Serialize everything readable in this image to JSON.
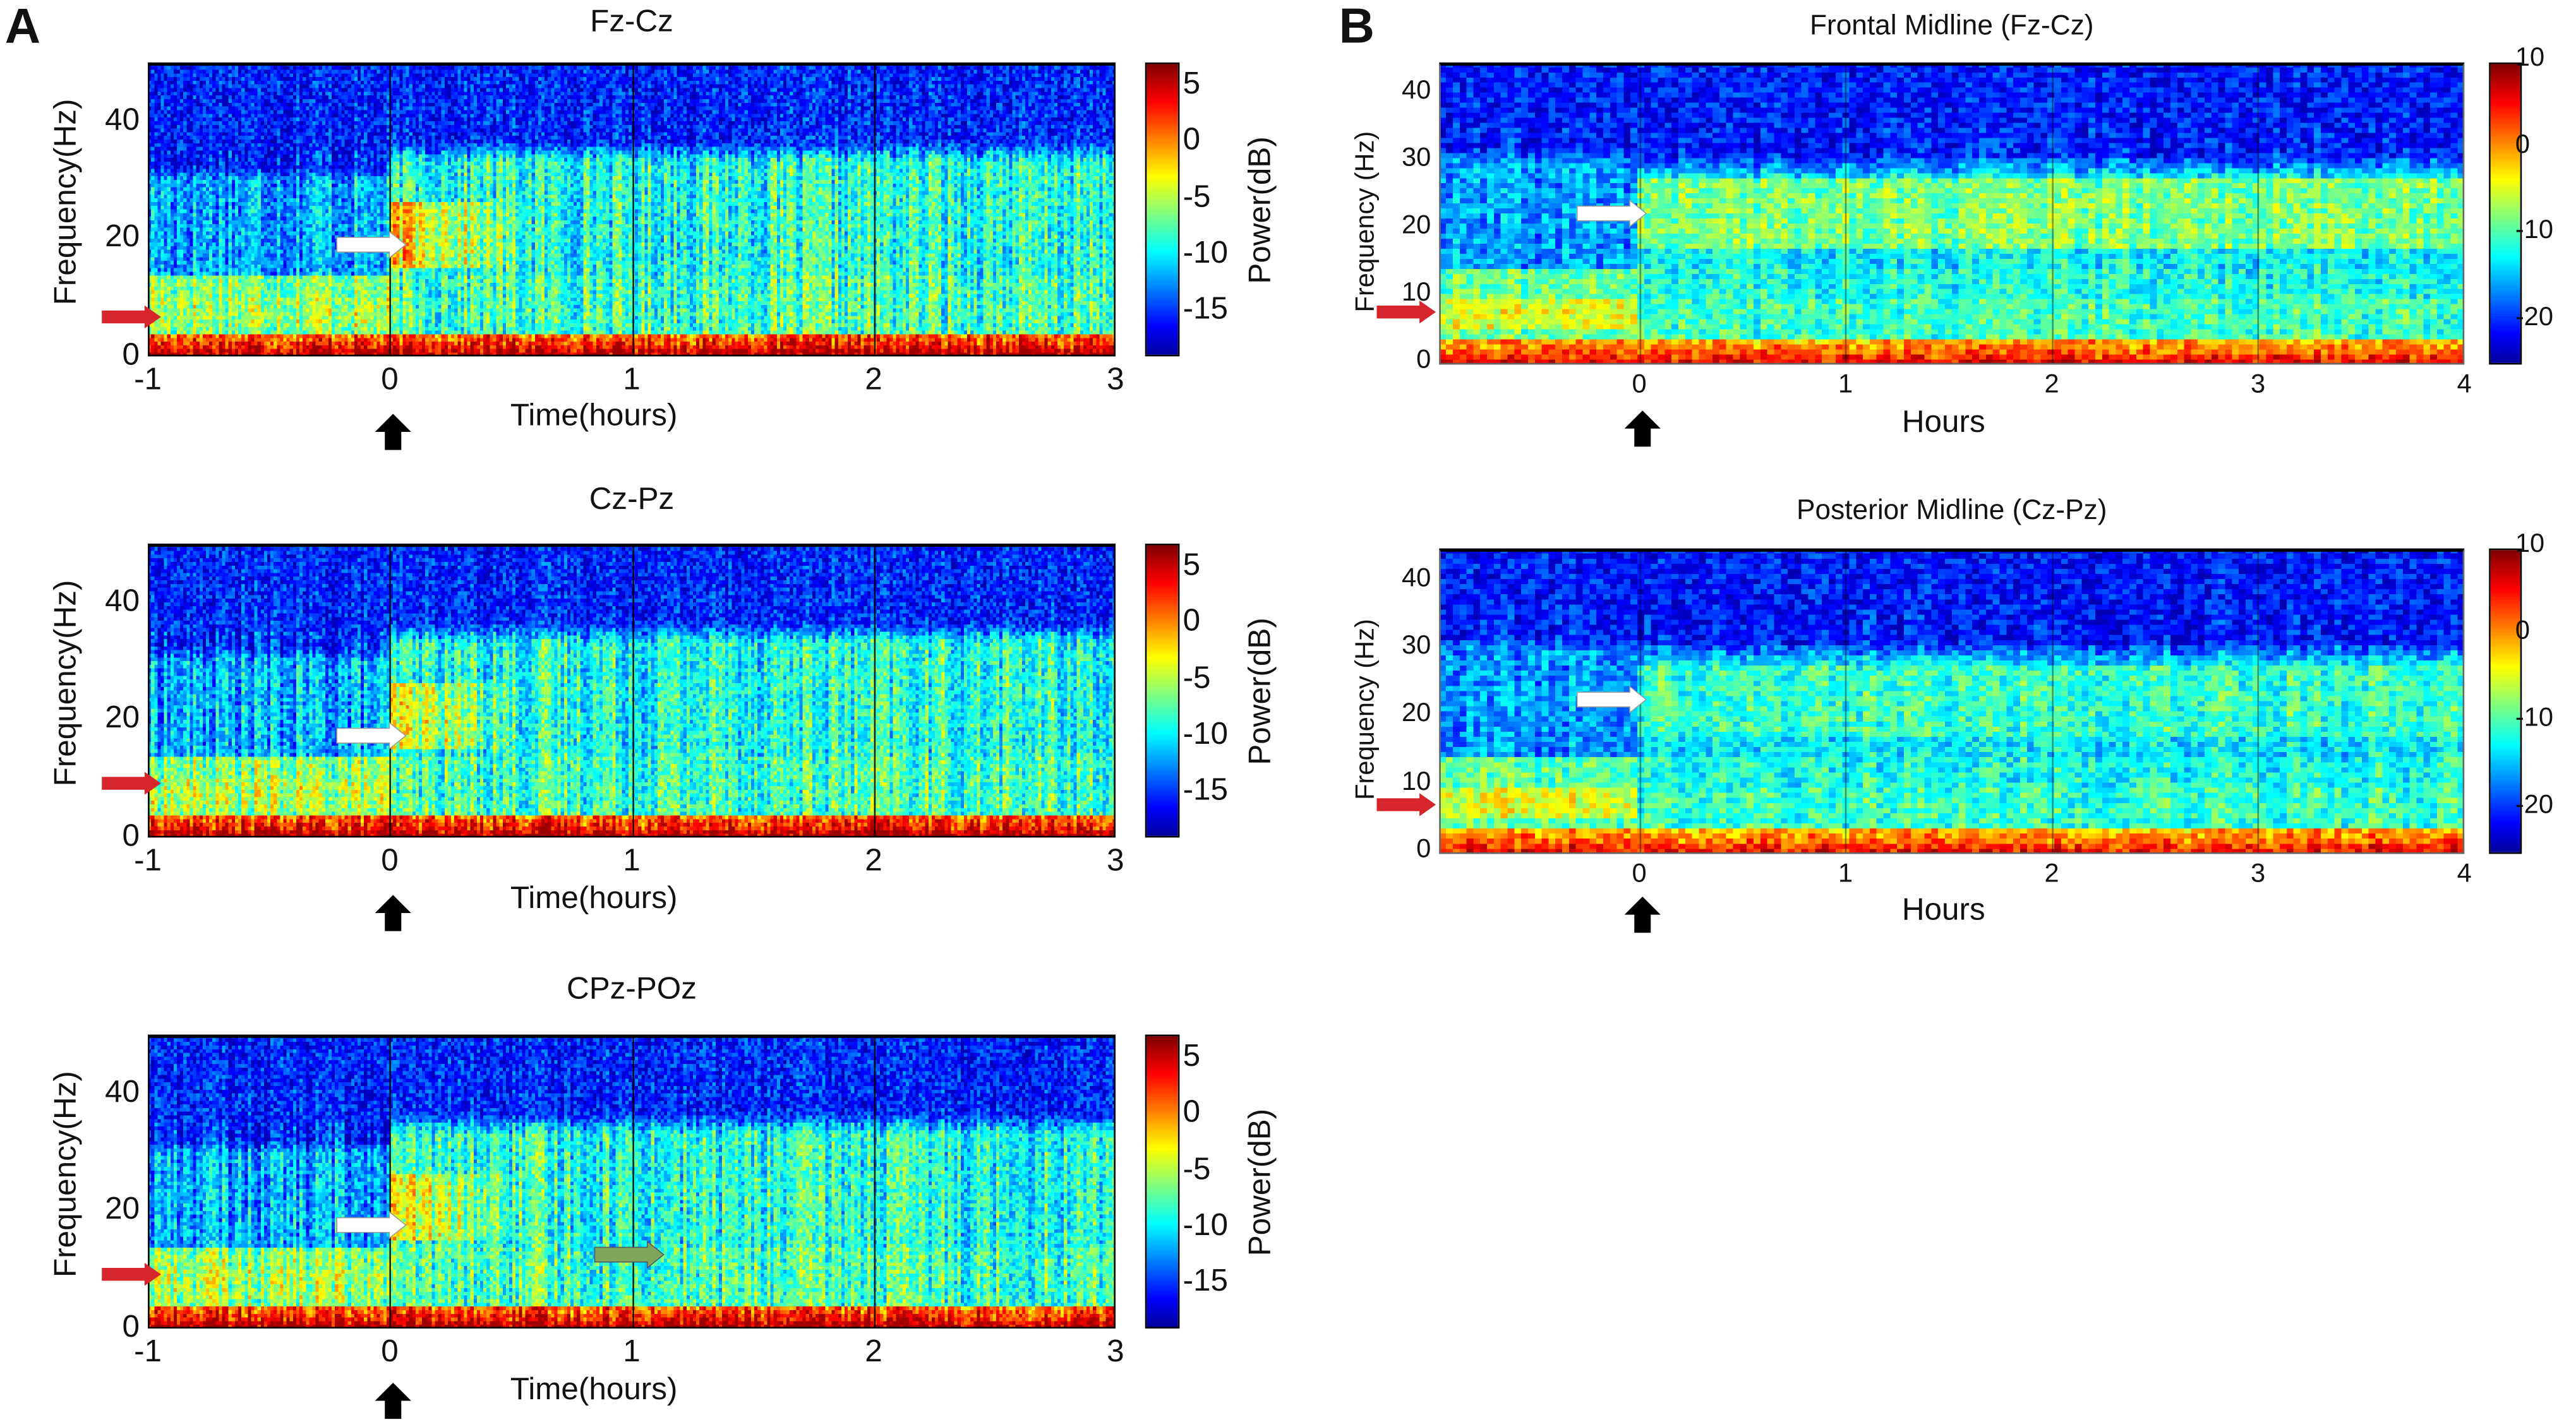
{
  "panel_letters": {
    "a": "A",
    "b": "B"
  },
  "chart_data": [
    {
      "type": "heatmap",
      "panel": "A",
      "title": "Fz-Cz",
      "xlabel": "Time(hours)",
      "ylabel": "Frequency(Hz)",
      "xlim": [
        -1,
        3
      ],
      "ylim": [
        0,
        50
      ],
      "xticks": [
        "-1",
        "0",
        "1",
        "2",
        "3"
      ],
      "yticks": [
        "0",
        "20",
        "40"
      ],
      "colorbar": {
        "label": "Power(dB)",
        "range": [
          -19,
          7
        ],
        "ticks": [
          "5",
          "0",
          "-5",
          "-10",
          "-15"
        ],
        "colormap": "jet"
      },
      "annotations": [
        "white-arrow at 0 h, ~20 Hz (beta increase)",
        "red-arrow at ~8 Hz (alpha)",
        "black-arrow at 0 h"
      ]
    },
    {
      "type": "heatmap",
      "panel": "A",
      "title": "Cz-Pz",
      "xlabel": "Time(hours)",
      "ylabel": "Frequency(Hz)",
      "xlim": [
        -1,
        3
      ],
      "ylim": [
        0,
        50
      ],
      "xticks": [
        "-1",
        "0",
        "1",
        "2",
        "3"
      ],
      "yticks": [
        "0",
        "20",
        "40"
      ],
      "colorbar": {
        "label": "Power(dB)",
        "range": [
          -19,
          7
        ],
        "ticks": [
          "5",
          "0",
          "-5",
          "-10",
          "-15"
        ],
        "colormap": "jet"
      },
      "annotations": [
        "white-arrow at 0 h, ~18 Hz",
        "red-arrow at ~9 Hz",
        "black-arrow at 0 h"
      ]
    },
    {
      "type": "heatmap",
      "panel": "A",
      "title": "CPz-POz",
      "xlabel": "Time(hours)",
      "ylabel": "Frequency(Hz)",
      "xlim": [
        -1,
        3
      ],
      "ylim": [
        0,
        50
      ],
      "xticks": [
        "-1",
        "0",
        "1",
        "2",
        "3"
      ],
      "yticks": [
        "0",
        "20",
        "40"
      ],
      "colorbar": {
        "label": "Power(dB)",
        "range": [
          -19,
          7
        ],
        "ticks": [
          "5",
          "0",
          "-5",
          "-10",
          "-15"
        ],
        "colormap": "jet"
      },
      "annotations": [
        "white-arrow at 0 h, ~18 Hz",
        "green-arrow at ~1 h, ~13 Hz",
        "red-arrow at ~9 Hz",
        "black-arrow at 0 h"
      ]
    },
    {
      "type": "heatmap",
      "panel": "B",
      "title": "Frontal Midline (Fz-Cz)",
      "xlabel": "Hours",
      "ylabel": "Frequency (Hz)",
      "xlim": [
        -0.97,
        4
      ],
      "ylim": [
        0,
        45
      ],
      "xticks": [
        "0",
        "1",
        "2",
        "3",
        "4"
      ],
      "yticks": [
        "0",
        "10",
        "20",
        "30",
        "40"
      ],
      "colorbar": {
        "label": "",
        "range": [
          -25,
          10
        ],
        "ticks": [
          "10",
          "0",
          "-10",
          "-20"
        ],
        "colormap": "jet"
      },
      "annotations": [
        "white-arrow at 0 h, ~22 Hz",
        "red-arrow at ~8 Hz",
        "black-arrow at 0 h"
      ]
    },
    {
      "type": "heatmap",
      "panel": "B",
      "title": "Posterior Midline (Cz-Pz)",
      "xlabel": "Hours",
      "ylabel": "Frequency (Hz)",
      "xlim": [
        -0.97,
        4
      ],
      "ylim": [
        0,
        45
      ],
      "xticks": [
        "0",
        "1",
        "2",
        "3",
        "4"
      ],
      "yticks": [
        "0",
        "10",
        "20",
        "30",
        "40"
      ],
      "colorbar": {
        "label": "",
        "range": [
          -25,
          10
        ],
        "ticks": [
          "10",
          "0",
          "-10",
          "-20"
        ],
        "colormap": "jet"
      },
      "annotations": [
        "white-arrow at 0 h, ~22 Hz",
        "red-arrow at ~8 Hz",
        "black-arrow at 0 h"
      ]
    }
  ],
  "colors": {
    "red_arrow": "#d7262b",
    "white_arrow": "#ffffff",
    "green_arrow": "#7fa65a",
    "black_arrow": "#000000"
  }
}
